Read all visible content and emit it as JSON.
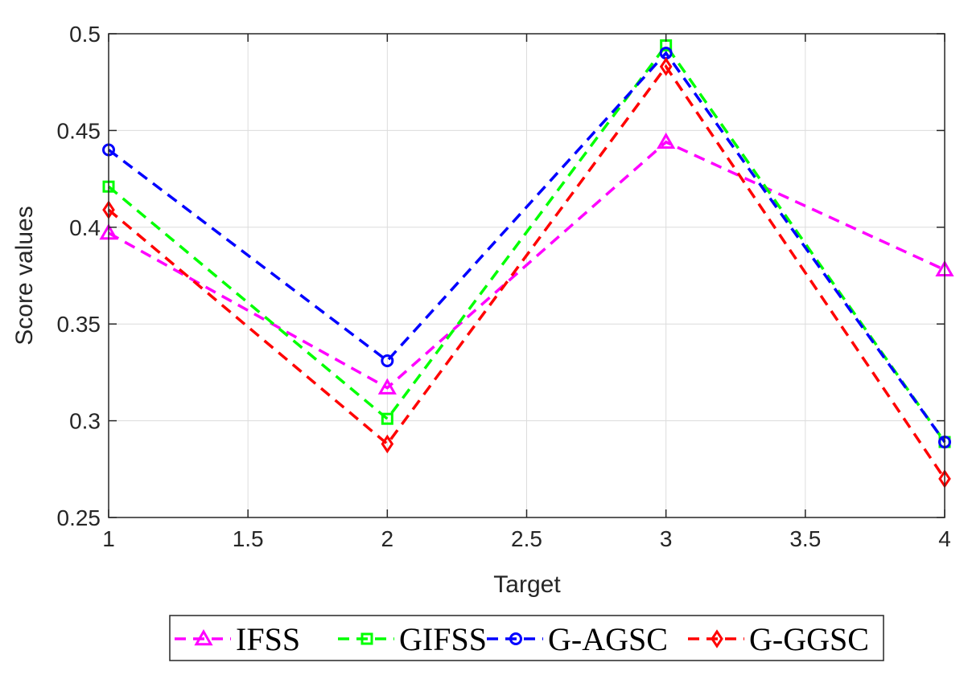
{
  "chart_data": {
    "type": "line",
    "title": "",
    "xlabel": "Target",
    "ylabel": "Score values",
    "xlim": [
      1,
      4
    ],
    "ylim": [
      0.25,
      0.5
    ],
    "grid": true,
    "x_ticks": [
      1,
      1.5,
      2,
      2.5,
      3,
      3.5,
      4
    ],
    "x_tick_labels": [
      "1",
      "1.5",
      "2",
      "2.5",
      "3",
      "3.5",
      "4"
    ],
    "y_ticks": [
      0.25,
      0.3,
      0.35,
      0.4,
      0.45,
      0.5
    ],
    "y_tick_labels": [
      "0.25",
      "0.3",
      "0.35",
      "0.4",
      "0.45",
      "0.5"
    ],
    "x": [
      1,
      2,
      3,
      4
    ],
    "legend_position": "bottom-outside",
    "series": [
      {
        "name": "IFSS",
        "values": [
          0.397,
          0.317,
          0.444,
          0.378
        ],
        "color": "#ff00ff",
        "marker": "triangle",
        "line_style": "dashed"
      },
      {
        "name": "GIFSS",
        "values": [
          0.421,
          0.301,
          0.494,
          0.289
        ],
        "color": "#00ff00",
        "marker": "square",
        "line_style": "dashed"
      },
      {
        "name": "G-AGSC",
        "values": [
          0.44,
          0.331,
          0.49,
          0.289
        ],
        "color": "#0000ff",
        "marker": "circle",
        "line_style": "dashed"
      },
      {
        "name": "G-GGSC",
        "values": [
          0.409,
          0.288,
          0.483,
          0.27
        ],
        "color": "#ff0000",
        "marker": "diamond",
        "line_style": "dashed"
      }
    ]
  }
}
